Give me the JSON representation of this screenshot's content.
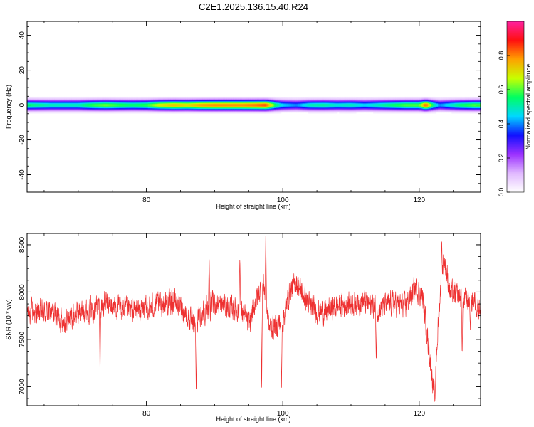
{
  "page_title": "C2E1.2025.136.15.40.R24",
  "chart_data": [
    {
      "type": "heatmap",
      "title": "C2E1.2025.136.15.40.R24",
      "xlabel": "Height of straight line (km)",
      "ylabel": "Frequency (Hz)",
      "xlim": [
        62.5,
        129
      ],
      "ylim": [
        -50,
        48
      ],
      "x_ticks": [
        80,
        100,
        120
      ],
      "y_ticks": [
        -40,
        -20,
        0,
        20,
        40
      ],
      "colorbar": {
        "label": "Normalized spectral amplitude",
        "range": [
          0,
          1
        ],
        "ticks": [
          "0.0",
          "0.2",
          "0.4",
          "0.6",
          "0.8"
        ],
        "tick_values": [
          0.0,
          0.2,
          0.4,
          0.6,
          0.8
        ],
        "colormap": [
          "#ffffff",
          "#e0b8ff",
          "#9b30ff",
          "#1010ff",
          "#00d8ff",
          "#00ff60",
          "#c8ff00",
          "#ffa000",
          "#ff1010",
          "#ff20a0"
        ]
      },
      "band": {
        "center_hz": 0,
        "half_width_hz": 2,
        "peak_amplitude": [
          [
            62.5,
            0.55
          ],
          [
            66,
            0.5
          ],
          [
            70,
            0.5
          ],
          [
            72,
            0.58
          ],
          [
            74,
            0.62
          ],
          [
            76,
            0.58
          ],
          [
            78,
            0.55
          ],
          [
            80,
            0.58
          ],
          [
            82,
            0.7
          ],
          [
            84,
            0.75
          ],
          [
            86,
            0.72
          ],
          [
            88,
            0.78
          ],
          [
            90,
            0.8
          ],
          [
            92,
            0.8
          ],
          [
            94,
            0.8
          ],
          [
            96,
            0.82
          ],
          [
            97.5,
            0.85
          ],
          [
            99,
            0.55
          ],
          [
            100,
            0.45
          ],
          [
            102,
            0.4
          ],
          [
            104,
            0.5
          ],
          [
            106,
            0.52
          ],
          [
            108,
            0.48
          ],
          [
            110,
            0.5
          ],
          [
            112,
            0.45
          ],
          [
            114,
            0.5
          ],
          [
            116,
            0.55
          ],
          [
            118,
            0.6
          ],
          [
            120,
            0.6
          ],
          [
            121,
            0.85
          ],
          [
            122,
            0.55
          ],
          [
            123,
            0.4
          ],
          [
            124,
            0.45
          ],
          [
            126,
            0.55
          ],
          [
            128,
            0.6
          ],
          [
            129,
            0.6
          ]
        ]
      }
    },
    {
      "type": "line",
      "xlabel": "Height of straight line (km)",
      "ylabel": "SNR (10 * v/v)",
      "xlim": [
        62.5,
        129
      ],
      "ylim": [
        6800,
        8620
      ],
      "x_ticks": [
        80,
        100,
        120
      ],
      "y_ticks": [
        7000,
        7500,
        8000,
        8500
      ],
      "color": "#ee3030",
      "points_per_km": 42,
      "trend": [
        [
          62.5,
          7800
        ],
        [
          66,
          7780
        ],
        [
          68,
          7700
        ],
        [
          70,
          7780
        ],
        [
          72,
          7830
        ],
        [
          74,
          7880
        ],
        [
          76,
          7830
        ],
        [
          78,
          7800
        ],
        [
          80,
          7820
        ],
        [
          82,
          7880
        ],
        [
          84,
          7900
        ],
        [
          85,
          7850
        ],
        [
          86,
          7750
        ],
        [
          87,
          7620
        ],
        [
          88,
          7780
        ],
        [
          90,
          7880
        ],
        [
          92,
          7850
        ],
        [
          94,
          7800
        ],
        [
          95,
          7650
        ],
        [
          96,
          7900
        ],
        [
          97.2,
          8100
        ],
        [
          98,
          7620
        ],
        [
          99,
          7650
        ],
        [
          100,
          7700
        ],
        [
          101,
          8000
        ],
        [
          102,
          8100
        ],
        [
          103,
          7980
        ],
        [
          104,
          7850
        ],
        [
          106,
          7780
        ],
        [
          108,
          7850
        ],
        [
          110,
          7880
        ],
        [
          112,
          7900
        ],
        [
          114,
          7820
        ],
        [
          116,
          7880
        ],
        [
          118,
          7850
        ],
        [
          119.5,
          8050
        ],
        [
          120.5,
          7950
        ],
        [
          121.5,
          7350
        ],
        [
          122.2,
          6950
        ],
        [
          123,
          7900
        ],
        [
          123.6,
          8380
        ],
        [
          124.5,
          8000
        ],
        [
          126,
          7950
        ],
        [
          128,
          7900
        ],
        [
          129,
          7850
        ]
      ],
      "noise_amplitude": 120,
      "spikes": [
        [
          73.2,
          7120
        ],
        [
          87.3,
          6900
        ],
        [
          89.2,
          8400
        ],
        [
          93.7,
          8400
        ],
        [
          96.9,
          6950
        ],
        [
          97.5,
          8600
        ],
        [
          99.8,
          6920
        ],
        [
          113.7,
          7250
        ],
        [
          122.3,
          6820
        ],
        [
          123.3,
          8560
        ],
        [
          126.3,
          7330
        ],
        [
          127.5,
          7600
        ]
      ]
    }
  ]
}
